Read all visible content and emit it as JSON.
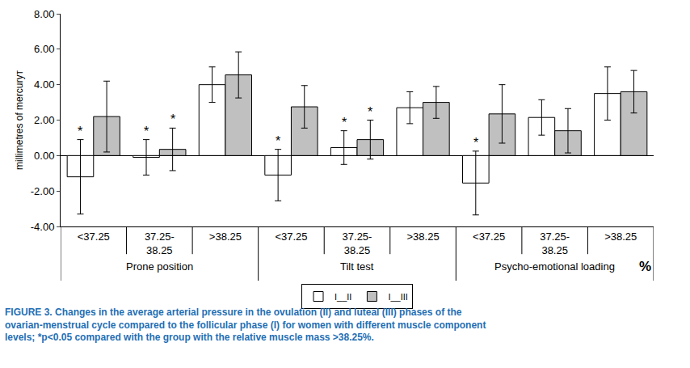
{
  "chart_data": {
    "type": "bar",
    "title": "FIGURE 3. Changes in the average arterial pressure in the ovulation (II) and luteal (III) phases of the ovarian-menstrual cycle compared to the follicular phase (I) for women with different muscle component levels; *p<0.05 compared with the group with the relative muscle mass >38.25%.",
    "x_label": "%",
    "y_label": "millimetres of mercuryт",
    "categories": [
      [
        "Prone position",
        "<37.25"
      ],
      [
        "Prone position",
        "37.25-38.25"
      ],
      [
        "Prone position",
        ">38.25"
      ],
      [
        "Tilt test",
        "<37.25"
      ],
      [
        "Tilt test",
        "37.25-38.25"
      ],
      [
        "Tilt test",
        ">38.25"
      ],
      [
        "Psycho-emotional loading",
        "<37.25"
      ],
      [
        "Psycho-emotional loading",
        "37.25-38.25"
      ],
      [
        "Psycho-emotional loading",
        ">38.25"
      ]
    ],
    "series": [
      {
        "name": "I__II",
        "color": "#ffffff",
        "values": [
          -1.2,
          -0.1,
          4.0,
          -1.1,
          0.45,
          2.7,
          -1.55,
          2.15,
          3.5
        ],
        "errors": [
          2.1,
          1.0,
          1.0,
          1.45,
          0.95,
          0.9,
          1.8,
          1.0,
          1.5
        ],
        "significance": [
          "*",
          "*",
          null,
          "*",
          "*",
          null,
          "*",
          null,
          null
        ]
      },
      {
        "name": "I__III",
        "color": "#c0c0c0",
        "values": [
          2.2,
          0.35,
          4.55,
          2.75,
          0.9,
          3.0,
          2.35,
          1.4,
          3.6
        ],
        "errors": [
          2.0,
          1.2,
          1.3,
          1.2,
          1.1,
          0.9,
          1.65,
          1.25,
          1.2
        ],
        "significance": [
          null,
          "*",
          null,
          null,
          "*",
          null,
          null,
          null,
          null
        ]
      }
    ],
    "ylim": [
      -4,
      8
    ],
    "yticks": [
      {
        "value": -4,
        "label": "-4.00"
      },
      {
        "value": -2,
        "label": "-2.00"
      },
      {
        "value": 0,
        "label": "0.00"
      },
      {
        "value": 2,
        "label": "2.00"
      },
      {
        "value": 4,
        "label": "4.00"
      },
      {
        "value": 6,
        "label": "6.00"
      },
      {
        "value": 8,
        "label": "8.00"
      }
    ],
    "grid": false,
    "legend": "bottom"
  }
}
